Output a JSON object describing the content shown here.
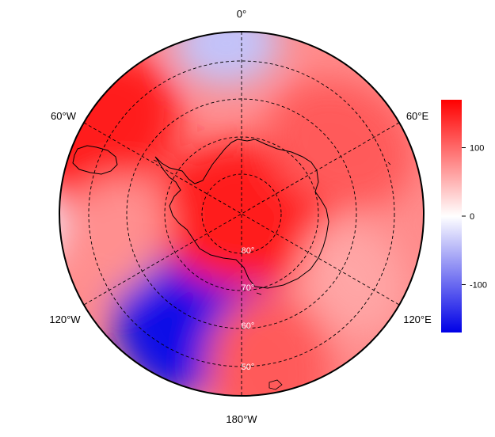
{
  "map": {
    "projection": "south polar stereographic",
    "colormap": "blue-white-red",
    "colors": {
      "low": "#0000e6",
      "mid": "#ffffff",
      "high": "#ff0000"
    },
    "longitude_labels": {
      "top": "0°",
      "upper_left": "60°W",
      "upper_right": "60°E",
      "lower_left": "120°W",
      "lower_right": "120°E",
      "bottom": "180°W"
    },
    "latitude_labels": [
      "80°",
      "70°",
      "60°",
      "50°"
    ],
    "colorbar": {
      "range": [
        -170,
        170
      ],
      "ticks": [
        "100",
        "0",
        "-100"
      ],
      "tick_values": [
        100,
        0,
        -100
      ]
    },
    "field_features": [
      {
        "name": "negative anomaly",
        "lon": -150,
        "lat": -64,
        "value": -165
      },
      {
        "name": "negative anomaly",
        "lon": -5,
        "lat": -45,
        "value": -40
      },
      {
        "name": "negative anomaly",
        "lon": -92,
        "lat": -40,
        "value": -10
      },
      {
        "name": "positive anomaly",
        "lon": -60,
        "lat": -45,
        "value": 150
      },
      {
        "name": "positive anomaly",
        "lon": 0,
        "lat": -90,
        "value": 150
      },
      {
        "name": "positive anomaly",
        "lon": 55,
        "lat": -58,
        "value": 110
      },
      {
        "name": "positive anomaly",
        "lon": 170,
        "lat": -48,
        "value": 110
      },
      {
        "name": "positive anomaly",
        "lon": -100,
        "lat": -55,
        "value": 75
      },
      {
        "name": "positive anomaly",
        "lon": 120,
        "lat": -56,
        "value": 60
      }
    ]
  }
}
